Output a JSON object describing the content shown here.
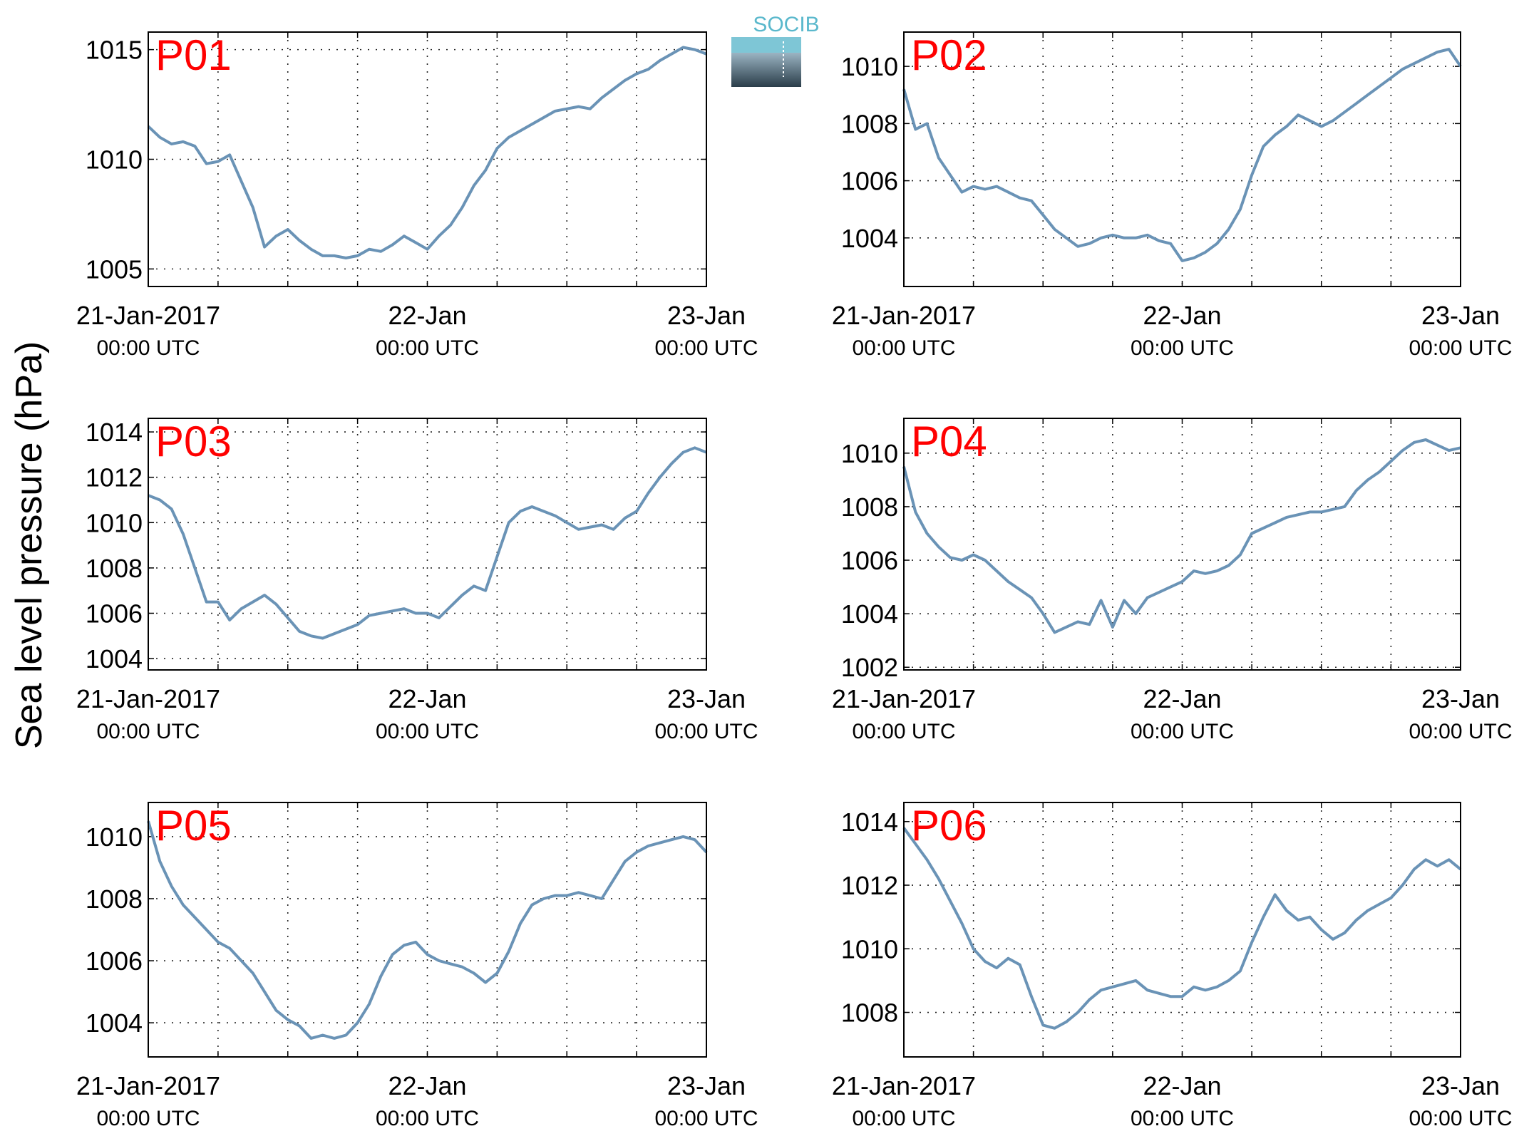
{
  "figure": {
    "ylabel": "Sea level pressure (hPa)",
    "logo_text": "SOCIB",
    "line_color": "#6a93b6",
    "label_color": "#ff0000",
    "grid": "dotted"
  },
  "chart_data": [
    {
      "type": "line",
      "title": "P01",
      "xlabels": [
        {
          "t": 0,
          "top": "21-Jan-2017",
          "bottom": "00:00 UTC"
        },
        {
          "t": 24,
          "top": "22-Jan",
          "bottom": "00:00 UTC"
        },
        {
          "t": 48,
          "top": "23-Jan",
          "bottom": "00:00 UTC"
        }
      ],
      "xlim": [
        0,
        48
      ],
      "ylim": [
        1004.2,
        1015.8
      ],
      "yticks": [
        1005,
        1010,
        1015
      ],
      "series": [
        {
          "x": [
            0,
            1,
            2,
            3,
            4,
            5,
            6,
            7,
            8,
            9,
            10,
            11,
            12,
            13,
            14,
            15,
            16,
            17,
            18,
            19,
            20,
            21,
            22,
            23,
            24,
            25,
            26,
            27,
            28,
            29,
            30,
            31,
            32,
            33,
            34,
            35,
            36,
            37,
            38,
            39,
            40,
            41,
            42,
            43,
            44,
            45,
            46,
            47,
            48
          ],
          "y": [
            1011.5,
            1011.0,
            1010.7,
            1010.8,
            1010.6,
            1009.8,
            1009.9,
            1010.2,
            1009.0,
            1007.8,
            1006.0,
            1006.5,
            1006.8,
            1006.3,
            1005.9,
            1005.6,
            1005.6,
            1005.5,
            1005.6,
            1005.9,
            1005.8,
            1006.1,
            1006.5,
            1006.2,
            1005.9,
            1006.5,
            1007.0,
            1007.8,
            1008.8,
            1009.5,
            1010.5,
            1011.0,
            1011.3,
            1011.6,
            1011.9,
            1012.2,
            1012.3,
            1012.4,
            1012.3,
            1012.8,
            1013.2,
            1013.6,
            1013.9,
            1014.1,
            1014.5,
            1014.8,
            1015.1,
            1015.0,
            1014.8
          ]
        }
      ]
    },
    {
      "type": "line",
      "title": "P02",
      "xlabels": [
        {
          "t": 0,
          "top": "21-Jan-2017",
          "bottom": "00:00 UTC"
        },
        {
          "t": 24,
          "top": "22-Jan",
          "bottom": "00:00 UTC"
        },
        {
          "t": 48,
          "top": "23-Jan",
          "bottom": "00:00 UTC"
        }
      ],
      "xlim": [
        0,
        48
      ],
      "ylim": [
        1002.3,
        1011.2
      ],
      "yticks": [
        1004,
        1006,
        1008,
        1010
      ],
      "series": [
        {
          "x": [
            0,
            1,
            2,
            3,
            4,
            5,
            6,
            7,
            8,
            9,
            10,
            11,
            12,
            13,
            14,
            15,
            16,
            17,
            18,
            19,
            20,
            21,
            22,
            23,
            24,
            25,
            26,
            27,
            28,
            29,
            30,
            31,
            32,
            33,
            34,
            35,
            36,
            37,
            38,
            39,
            40,
            41,
            42,
            43,
            44,
            45,
            46,
            47,
            48
          ],
          "y": [
            1009.2,
            1007.8,
            1008.0,
            1006.8,
            1006.2,
            1005.6,
            1005.8,
            1005.7,
            1005.8,
            1005.6,
            1005.4,
            1005.3,
            1004.8,
            1004.3,
            1004.0,
            1003.7,
            1003.8,
            1004.0,
            1004.1,
            1004.0,
            1004.0,
            1004.1,
            1003.9,
            1003.8,
            1003.2,
            1003.3,
            1003.5,
            1003.8,
            1004.3,
            1005.0,
            1006.2,
            1007.2,
            1007.6,
            1007.9,
            1008.3,
            1008.1,
            1007.9,
            1008.1,
            1008.4,
            1008.7,
            1009.0,
            1009.3,
            1009.6,
            1009.9,
            1010.1,
            1010.3,
            1010.5,
            1010.6,
            1010.0
          ]
        }
      ]
    },
    {
      "type": "line",
      "title": "P03",
      "xlabels": [
        {
          "t": 0,
          "top": "21-Jan-2017",
          "bottom": "00:00 UTC"
        },
        {
          "t": 24,
          "top": "22-Jan",
          "bottom": "00:00 UTC"
        },
        {
          "t": 48,
          "top": "23-Jan",
          "bottom": "00:00 UTC"
        }
      ],
      "xlim": [
        0,
        48
      ],
      "ylim": [
        1003.5,
        1014.6
      ],
      "yticks": [
        1004,
        1006,
        1008,
        1010,
        1012,
        1014
      ],
      "series": [
        {
          "x": [
            0,
            1,
            2,
            3,
            4,
            5,
            6,
            7,
            8,
            9,
            10,
            11,
            12,
            13,
            14,
            15,
            16,
            17,
            18,
            19,
            20,
            21,
            22,
            23,
            24,
            25,
            26,
            27,
            28,
            29,
            30,
            31,
            32,
            33,
            34,
            35,
            36,
            37,
            38,
            39,
            40,
            41,
            42,
            43,
            44,
            45,
            46,
            47,
            48
          ],
          "y": [
            1011.2,
            1011.0,
            1010.6,
            1009.5,
            1008.0,
            1006.5,
            1006.5,
            1005.7,
            1006.2,
            1006.5,
            1006.8,
            1006.4,
            1005.8,
            1005.2,
            1005.0,
            1004.9,
            1005.1,
            1005.3,
            1005.5,
            1005.9,
            1006.0,
            1006.1,
            1006.2,
            1006.0,
            1006.0,
            1005.8,
            1006.3,
            1006.8,
            1007.2,
            1007.0,
            1008.5,
            1010.0,
            1010.5,
            1010.7,
            1010.5,
            1010.3,
            1010.0,
            1009.7,
            1009.8,
            1009.9,
            1009.7,
            1010.2,
            1010.5,
            1011.3,
            1012.0,
            1012.6,
            1013.1,
            1013.3,
            1013.1
          ]
        }
      ]
    },
    {
      "type": "line",
      "title": "P04",
      "xlabels": [
        {
          "t": 0,
          "top": "21-Jan-2017",
          "bottom": "00:00 UTC"
        },
        {
          "t": 24,
          "top": "22-Jan",
          "bottom": "00:00 UTC"
        },
        {
          "t": 48,
          "top": "23-Jan",
          "bottom": "00:00 UTC"
        }
      ],
      "xlim": [
        0,
        48
      ],
      "ylim": [
        1001.9,
        1011.3
      ],
      "yticks": [
        1002,
        1004,
        1006,
        1008,
        1010
      ],
      "series": [
        {
          "x": [
            0,
            1,
            2,
            3,
            4,
            5,
            6,
            7,
            8,
            9,
            10,
            11,
            12,
            13,
            14,
            15,
            16,
            17,
            18,
            19,
            20,
            21,
            22,
            23,
            24,
            25,
            26,
            27,
            28,
            29,
            30,
            31,
            32,
            33,
            34,
            35,
            36,
            37,
            38,
            39,
            40,
            41,
            42,
            43,
            44,
            45,
            46,
            47,
            48
          ],
          "y": [
            1009.5,
            1007.8,
            1007.0,
            1006.5,
            1006.1,
            1006.0,
            1006.2,
            1006.0,
            1005.6,
            1005.2,
            1004.9,
            1004.6,
            1004.0,
            1003.3,
            1003.5,
            1003.7,
            1003.6,
            1004.5,
            1003.5,
            1004.5,
            1004.0,
            1004.6,
            1004.8,
            1005.0,
            1005.2,
            1005.6,
            1005.5,
            1005.6,
            1005.8,
            1006.2,
            1007.0,
            1007.2,
            1007.4,
            1007.6,
            1007.7,
            1007.8,
            1007.8,
            1007.9,
            1008.0,
            1008.6,
            1009.0,
            1009.3,
            1009.7,
            1010.1,
            1010.4,
            1010.5,
            1010.3,
            1010.1,
            1010.2
          ]
        }
      ]
    },
    {
      "type": "line",
      "title": "P05",
      "xlabels": [
        {
          "t": 0,
          "top": "21-Jan-2017",
          "bottom": "00:00 UTC"
        },
        {
          "t": 24,
          "top": "22-Jan",
          "bottom": "00:00 UTC"
        },
        {
          "t": 48,
          "top": "23-Jan",
          "bottom": "00:00 UTC"
        }
      ],
      "xlim": [
        0,
        48
      ],
      "ylim": [
        1002.9,
        1011.1
      ],
      "yticks": [
        1004,
        1006,
        1008,
        1010
      ],
      "series": [
        {
          "x": [
            0,
            1,
            2,
            3,
            4,
            5,
            6,
            7,
            8,
            9,
            10,
            11,
            12,
            13,
            14,
            15,
            16,
            17,
            18,
            19,
            20,
            21,
            22,
            23,
            24,
            25,
            26,
            27,
            28,
            29,
            30,
            31,
            32,
            33,
            34,
            35,
            36,
            37,
            38,
            39,
            40,
            41,
            42,
            43,
            44,
            45,
            46,
            47,
            48
          ],
          "y": [
            1010.5,
            1009.2,
            1008.4,
            1007.8,
            1007.4,
            1007.0,
            1006.6,
            1006.4,
            1006.0,
            1005.6,
            1005.0,
            1004.4,
            1004.1,
            1003.9,
            1003.5,
            1003.6,
            1003.5,
            1003.6,
            1004.0,
            1004.6,
            1005.5,
            1006.2,
            1006.5,
            1006.6,
            1006.2,
            1006.0,
            1005.9,
            1005.8,
            1005.6,
            1005.3,
            1005.6,
            1006.3,
            1007.2,
            1007.8,
            1008.0,
            1008.1,
            1008.1,
            1008.2,
            1008.1,
            1008.0,
            1008.6,
            1009.2,
            1009.5,
            1009.7,
            1009.8,
            1009.9,
            1010.0,
            1009.9,
            1009.5
          ]
        }
      ]
    },
    {
      "type": "line",
      "title": "P06",
      "xlabels": [
        {
          "t": 0,
          "top": "21-Jan-2017",
          "bottom": "00:00 UTC"
        },
        {
          "t": 24,
          "top": "22-Jan",
          "bottom": "00:00 UTC"
        },
        {
          "t": 48,
          "top": "23-Jan",
          "bottom": "00:00 UTC"
        }
      ],
      "xlim": [
        0,
        48
      ],
      "ylim": [
        1006.6,
        1014.6
      ],
      "yticks": [
        1008,
        1010,
        1012,
        1014
      ],
      "series": [
        {
          "x": [
            0,
            1,
            2,
            3,
            4,
            5,
            6,
            7,
            8,
            9,
            10,
            11,
            12,
            13,
            14,
            15,
            16,
            17,
            18,
            19,
            20,
            21,
            22,
            23,
            24,
            25,
            26,
            27,
            28,
            29,
            30,
            31,
            32,
            33,
            34,
            35,
            36,
            37,
            38,
            39,
            40,
            41,
            42,
            43,
            44,
            45,
            46,
            47,
            48
          ],
          "y": [
            1013.8,
            1013.3,
            1012.8,
            1012.2,
            1011.5,
            1010.8,
            1010.0,
            1009.6,
            1009.4,
            1009.7,
            1009.5,
            1008.5,
            1007.6,
            1007.5,
            1007.7,
            1008.0,
            1008.4,
            1008.7,
            1008.8,
            1008.9,
            1009.0,
            1008.7,
            1008.6,
            1008.5,
            1008.5,
            1008.8,
            1008.7,
            1008.8,
            1009.0,
            1009.3,
            1010.2,
            1011.0,
            1011.7,
            1011.2,
            1010.9,
            1011.0,
            1010.6,
            1010.3,
            1010.5,
            1010.9,
            1011.2,
            1011.4,
            1011.6,
            1012.0,
            1012.5,
            1012.8,
            1012.6,
            1012.8,
            1012.5
          ]
        }
      ]
    }
  ]
}
